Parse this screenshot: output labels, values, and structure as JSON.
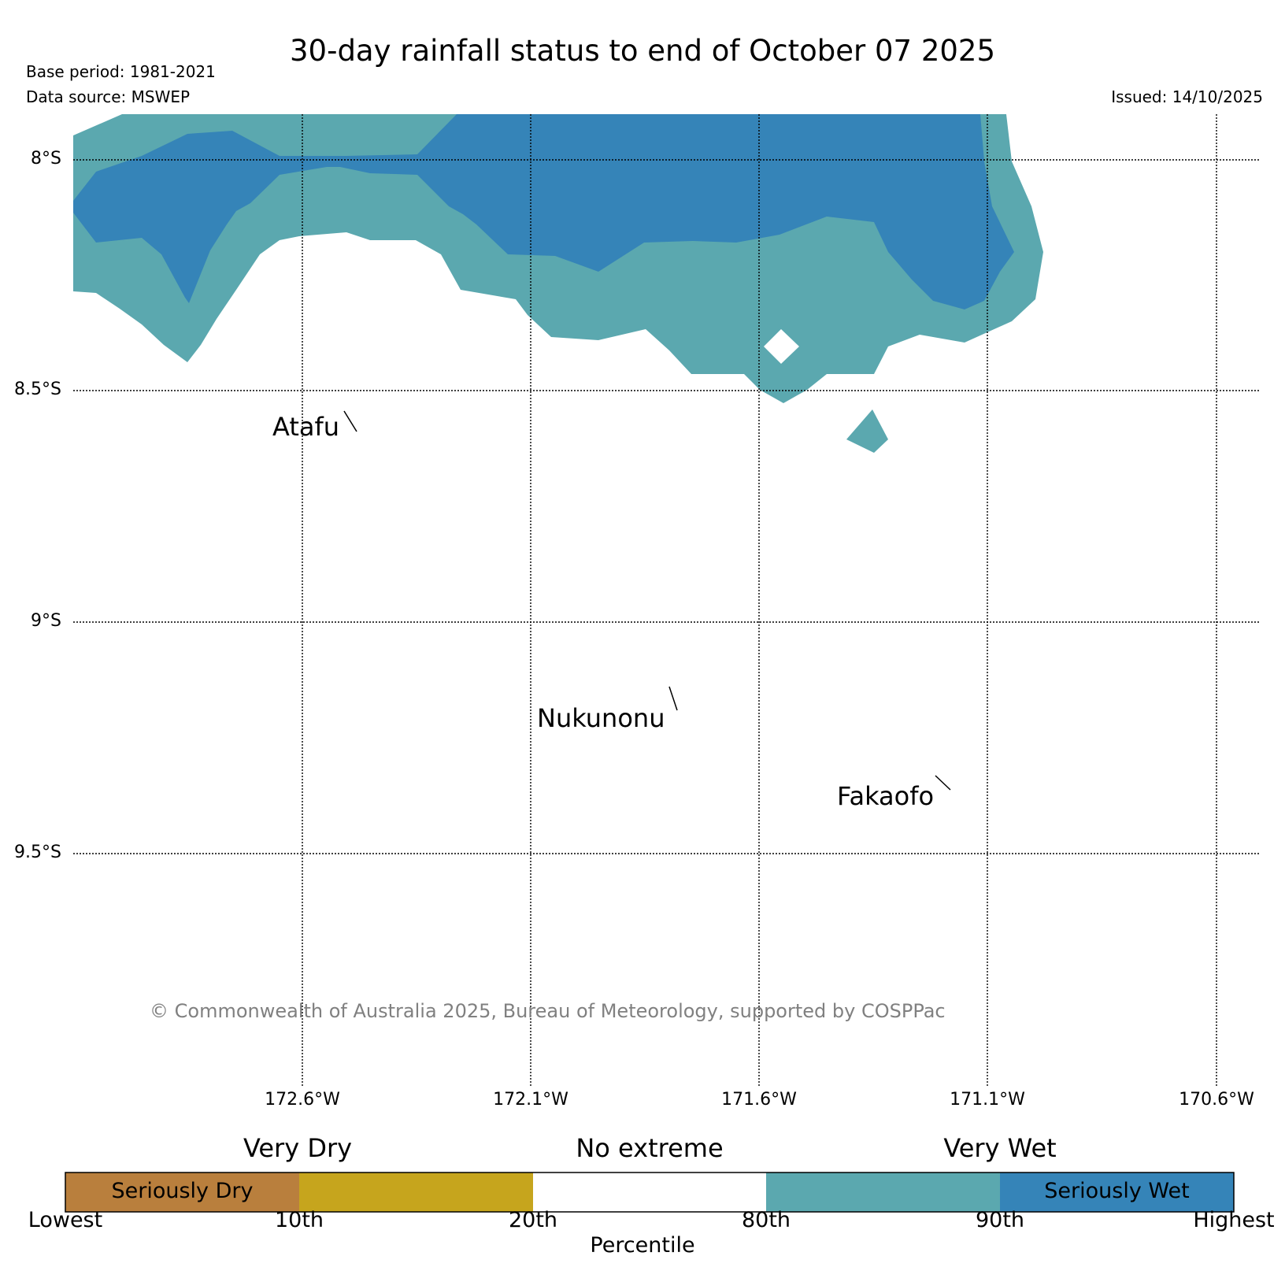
{
  "title": "30-day rainfall status to end of October 07 2025",
  "base_period": "Base period: 1981-2021",
  "data_source": "Data source: MSWEP",
  "issued": "Issued: 14/10/2025",
  "copyright": "© Commonwealth of Australia 2025, Bureau of Meteorology, supported by COSPPac",
  "map": {
    "lat_labels": [
      "8°S",
      "8.5°S",
      "9°S",
      "9.5°S"
    ],
    "lon_labels": [
      "172.6°W",
      "172.1°W",
      "171.6°W",
      "171.1°W",
      "170.6°W"
    ],
    "places": [
      {
        "name": "Atafu"
      },
      {
        "name": "Nukunonu"
      },
      {
        "name": "Fakaofo"
      }
    ],
    "colors": {
      "very_wet": "#5ba8af",
      "seriously_wet": "#3584b8",
      "no_extreme": "#ffffff"
    }
  },
  "legend": {
    "category_labels": [
      "Very Dry",
      "No extreme",
      "Very Wet"
    ],
    "segments": [
      {
        "label": "Seriously Dry",
        "color": "#b97f3d"
      },
      {
        "label": "",
        "color": "#c6a51d"
      },
      {
        "label": "",
        "color": "#ffffff"
      },
      {
        "label": "",
        "color": "#5ba8af"
      },
      {
        "label": "Seriously Wet",
        "color": "#3584b8"
      }
    ],
    "ticks": [
      "Lowest",
      "10th",
      "20th",
      "80th",
      "90th",
      "Highest"
    ],
    "axis_label": "Percentile"
  }
}
